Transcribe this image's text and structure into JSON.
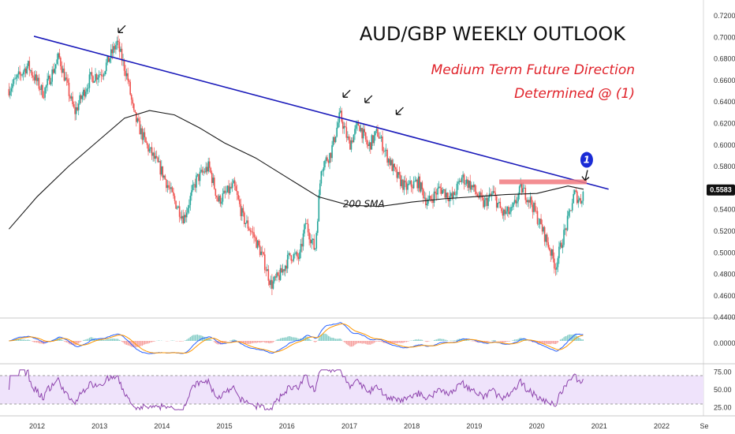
{
  "chart_data": {
    "type": "candlestick",
    "title": "AUD/GBP WEEKLY OUTLOOK",
    "subtitle_lines": [
      "Medium Term Future Direction",
      "Determined @ (1)"
    ],
    "current_price": "0.5583",
    "x_ticks": [
      "2012",
      "2013",
      "2014",
      "2015",
      "2016",
      "2017",
      "2018",
      "2019",
      "2020",
      "2021",
      "2022",
      "Se"
    ],
    "price_axis": {
      "ticks": [
        "0.7200",
        "0.7000",
        "0.6800",
        "0.6600",
        "0.6400",
        "0.6200",
        "0.6000",
        "0.5800",
        "0.5600",
        "0.5400",
        "0.5200",
        "0.5000",
        "0.4800",
        "0.4600",
        "0.4400"
      ],
      "range": [
        0.44,
        0.72
      ]
    },
    "price_path": [
      [
        2011.55,
        0.652
      ],
      [
        2011.85,
        0.674
      ],
      [
        2012.1,
        0.648
      ],
      [
        2012.35,
        0.682
      ],
      [
        2012.6,
        0.63
      ],
      [
        2012.85,
        0.662
      ],
      [
        2013.05,
        0.668
      ],
      [
        2013.28,
        0.695
      ],
      [
        2013.45,
        0.662
      ],
      [
        2013.55,
        0.628
      ],
      [
        2013.75,
        0.6
      ],
      [
        2014.0,
        0.575
      ],
      [
        2014.2,
        0.548
      ],
      [
        2014.35,
        0.532
      ],
      [
        2014.55,
        0.568
      ],
      [
        2014.75,
        0.58
      ],
      [
        2014.9,
        0.548
      ],
      [
        2015.15,
        0.562
      ],
      [
        2015.3,
        0.532
      ],
      [
        2015.45,
        0.518
      ],
      [
        2015.6,
        0.498
      ],
      [
        2015.75,
        0.47
      ],
      [
        2015.9,
        0.48
      ],
      [
        2016.05,
        0.498
      ],
      [
        2016.2,
        0.495
      ],
      [
        2016.3,
        0.528
      ],
      [
        2016.45,
        0.502
      ],
      [
        2016.55,
        0.58
      ],
      [
        2016.7,
        0.592
      ],
      [
        2016.85,
        0.628
      ],
      [
        2017.0,
        0.6
      ],
      [
        2017.15,
        0.62
      ],
      [
        2017.3,
        0.598
      ],
      [
        2017.45,
        0.612
      ],
      [
        2017.6,
        0.59
      ],
      [
        2017.75,
        0.572
      ],
      [
        2017.9,
        0.56
      ],
      [
        2018.1,
        0.566
      ],
      [
        2018.25,
        0.546
      ],
      [
        2018.45,
        0.56
      ],
      [
        2018.65,
        0.55
      ],
      [
        2018.8,
        0.57
      ],
      [
        2018.95,
        0.562
      ],
      [
        2019.15,
        0.545
      ],
      [
        2019.3,
        0.555
      ],
      [
        2019.45,
        0.536
      ],
      [
        2019.6,
        0.538
      ],
      [
        2019.75,
        0.56
      ],
      [
        2019.9,
        0.548
      ],
      [
        2020.1,
        0.52
      ],
      [
        2020.2,
        0.505
      ],
      [
        2020.3,
        0.487
      ],
      [
        2020.4,
        0.51
      ],
      [
        2020.5,
        0.53
      ],
      [
        2020.6,
        0.555
      ],
      [
        2020.7,
        0.548
      ],
      [
        2020.75,
        0.5583
      ]
    ],
    "sma_200_path": [
      [
        2011.55,
        0.522
      ],
      [
        2012.0,
        0.552
      ],
      [
        2012.5,
        0.58
      ],
      [
        2013.0,
        0.605
      ],
      [
        2013.4,
        0.625
      ],
      [
        2013.8,
        0.632
      ],
      [
        2014.2,
        0.628
      ],
      [
        2014.6,
        0.616
      ],
      [
        2015.0,
        0.602
      ],
      [
        2015.5,
        0.588
      ],
      [
        2016.0,
        0.57
      ],
      [
        2016.5,
        0.552
      ],
      [
        2017.0,
        0.544
      ],
      [
        2017.5,
        0.543
      ],
      [
        2018.0,
        0.547
      ],
      [
        2018.5,
        0.55
      ],
      [
        2019.0,
        0.552
      ],
      [
        2019.5,
        0.554
      ],
      [
        2020.0,
        0.555
      ],
      [
        2020.5,
        0.562
      ],
      [
        2020.75,
        0.559
      ]
    ],
    "trendline": {
      "start": [
        2011.95,
        0.701
      ],
      "end": [
        2021.15,
        0.559
      ]
    },
    "resistance_zone": {
      "x": [
        2019.4,
        2020.8
      ],
      "y": [
        0.564,
        0.568
      ]
    },
    "swing_high_marks": [
      [
        2013.25,
        0.7
      ],
      [
        2016.85,
        0.64
      ],
      [
        2017.2,
        0.635
      ],
      [
        2017.7,
        0.624
      ]
    ],
    "signal_point": {
      "label": "1",
      "x": 2020.8,
      "y": 0.576
    },
    "sma_label": {
      "text": "200 SMA",
      "x": 2017.2,
      "y": 0.5425
    },
    "macd": {
      "tick": "0.0000"
    },
    "rsi": {
      "ticks": [
        "75.00",
        "50.00",
        "25.00"
      ],
      "range": [
        20,
        80
      ],
      "band": [
        30,
        70
      ]
    },
    "colors": {
      "up": "#26a69a",
      "down": "#ef5350",
      "trend": "#1a1aba",
      "sma": "#1a1a1a",
      "zone": "#f17a7f",
      "macd": "#2962ff",
      "signal": "#ff9800",
      "rsi": "#8e44ad",
      "rsi_band": "#efe3fb",
      "title": "#111111",
      "subtitle": "#e0222a",
      "price_tag": "#111111"
    }
  }
}
